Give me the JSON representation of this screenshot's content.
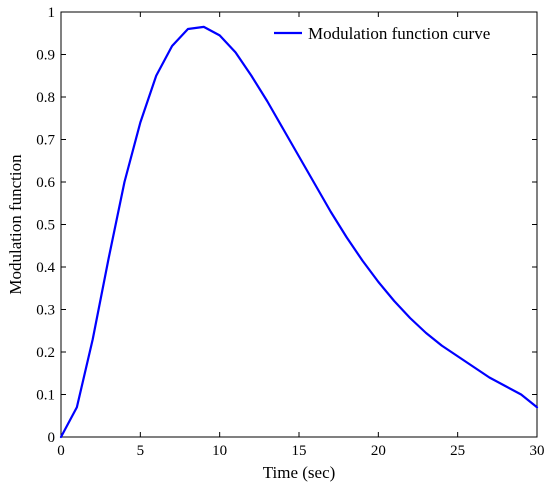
{
  "chart_data": {
    "type": "line",
    "xlabel": "Time (sec)",
    "ylabel": "Modulation function",
    "xlim": [
      0,
      30
    ],
    "ylim": [
      0,
      1
    ],
    "xticks": [
      0,
      5,
      10,
      15,
      20,
      25,
      30
    ],
    "yticks": [
      0,
      0.1,
      0.2,
      0.3,
      0.4,
      0.5,
      0.6,
      0.7,
      0.8,
      0.9,
      1
    ],
    "xtick_labels": [
      "0",
      "5",
      "10",
      "15",
      "20",
      "25",
      "30"
    ],
    "ytick_labels": [
      "0",
      "0.1",
      "0.2",
      "0.3",
      "0.4",
      "0.5",
      "0.6",
      "0.7",
      "0.8",
      "0.9",
      "1"
    ],
    "grid": false,
    "legend_position": "top-right",
    "series": [
      {
        "name": "Modulation function curve",
        "color": "#0000ff",
        "x": [
          0,
          1,
          2,
          3,
          4,
          5,
          6,
          7,
          8,
          9,
          10,
          11,
          12,
          13,
          14,
          15,
          16,
          17,
          18,
          19,
          20,
          21,
          22,
          23,
          24,
          25,
          26,
          27,
          28,
          29,
          30
        ],
        "y": [
          0,
          0.07,
          0.23,
          0.42,
          0.6,
          0.74,
          0.85,
          0.92,
          0.96,
          0.965,
          0.945,
          0.905,
          0.85,
          0.79,
          0.725,
          0.66,
          0.595,
          0.53,
          0.47,
          0.415,
          0.365,
          0.32,
          0.28,
          0.245,
          0.215,
          0.19,
          0.165,
          0.14,
          0.12,
          0.1,
          0.07
        ]
      }
    ]
  }
}
